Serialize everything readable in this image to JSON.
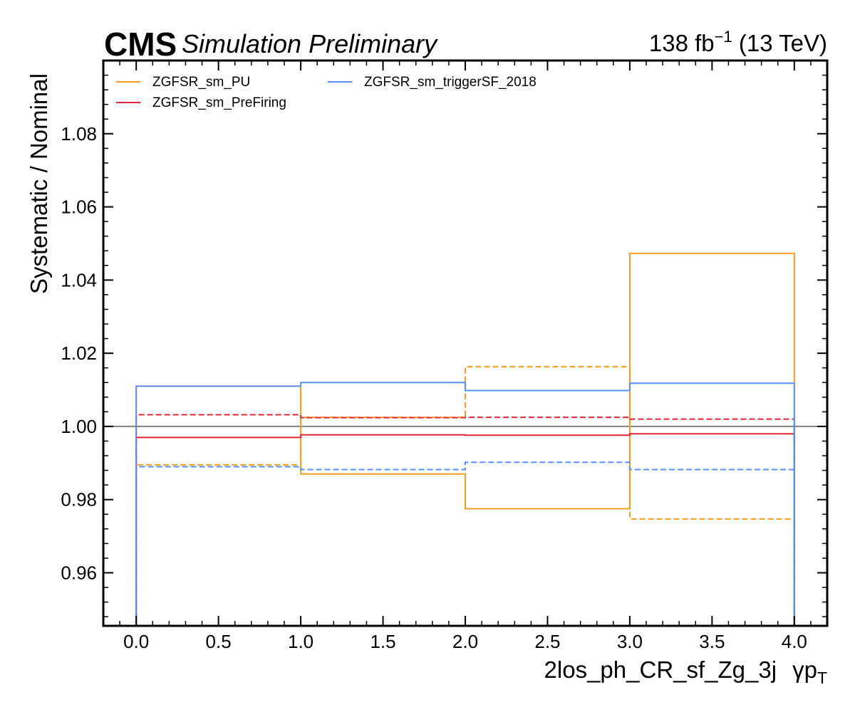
{
  "header": {
    "experiment": "CMS",
    "status": "Simulation Preliminary",
    "lumi_value": "138 fb",
    "lumi_exponent": "−1",
    "energy": " (13 TeV)"
  },
  "colors": {
    "pu": "#f89c20",
    "prefiring": "#e42536",
    "trigger": "#5790fc",
    "reference_line": "#808080",
    "axes": "#000000"
  },
  "chart_data": {
    "type": "line",
    "drawstyle": "step",
    "xlabel": "2los_ph_CR_sf_Zg_3j",
    "xlabel_suffix": "γp",
    "xlabel_subscript": "T",
    "ylabel": "Systematic / Nominal",
    "xlim": [
      -0.2,
      4.2
    ],
    "ylim": [
      0.9455,
      1.1
    ],
    "bin_edges": [
      0,
      1,
      2,
      3,
      4
    ],
    "x_ticks": [
      0.0,
      0.5,
      1.0,
      1.5,
      2.0,
      2.5,
      3.0,
      3.5,
      4.0
    ],
    "x_tick_labels": [
      "0.0",
      "0.5",
      "1.0",
      "1.5",
      "2.0",
      "2.5",
      "3.0",
      "3.5",
      "4.0"
    ],
    "y_ticks": [
      0.96,
      0.98,
      1.0,
      1.02,
      1.04,
      1.06,
      1.08
    ],
    "y_tick_labels": [
      "0.96",
      "0.98",
      "1.00",
      "1.02",
      "1.04",
      "1.06",
      "1.08"
    ],
    "reference_y": 1.0,
    "grid": false,
    "legend_position": "top-left",
    "series": [
      {
        "name": "ZGFSR_sm_PU",
        "color_key": "pu",
        "variation": "up",
        "values": [
          1.011,
          0.987,
          0.9775,
          1.0473
        ]
      },
      {
        "name": "",
        "color_key": "pu",
        "variation": "down",
        "values": [
          0.9895,
          1.0025,
          1.0163,
          0.9747
        ]
      },
      {
        "name": "ZGFSR_sm_PreFiring",
        "color_key": "prefiring",
        "variation": "up",
        "values": [
          0.997,
          0.9977,
          0.9976,
          0.998
        ]
      },
      {
        "name": "",
        "color_key": "prefiring",
        "variation": "down",
        "values": [
          1.0032,
          1.0024,
          1.0025,
          1.002
        ]
      },
      {
        "name": "ZGFSR_sm_triggerSF_2018",
        "color_key": "trigger",
        "variation": "up",
        "values": [
          1.011,
          1.012,
          1.0098,
          1.0118
        ]
      },
      {
        "name": "",
        "color_key": "trigger",
        "variation": "down",
        "values": [
          0.989,
          0.9882,
          0.9902,
          0.9882
        ]
      }
    ]
  }
}
